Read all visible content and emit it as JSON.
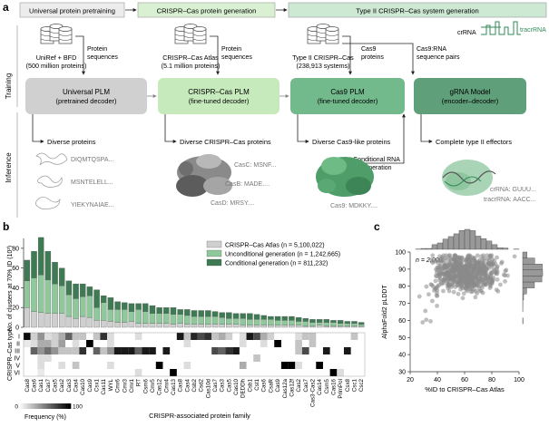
{
  "panel_labels": {
    "a": "a",
    "b": "b",
    "c": "c"
  },
  "stages": [
    {
      "label": "Universal protein pretraining",
      "color": "#e9e9e9"
    },
    {
      "label": "CRISPR–Cas protein generation",
      "color": "#d7f0d0"
    },
    {
      "label": "Type II CRISPR–Cas system generation",
      "color": "#c9e6cf"
    }
  ],
  "row_labels": {
    "training": "Training",
    "inference": "Inference"
  },
  "databases": [
    {
      "name": "UniRef + BFD",
      "detail": "(500 million proteins)",
      "arrow_label": [
        "Protein",
        "sequences"
      ]
    },
    {
      "name": "CRISPR–Cas Atlas",
      "detail": "(5.1 million proteins)",
      "arrow_label": [
        "Protein",
        "sequences"
      ]
    },
    {
      "name": "Type II CRISPR–Cas",
      "detail": "(238,913 systems)",
      "arrow_label": [
        "Cas9",
        "proteins"
      ]
    },
    {
      "name": "",
      "detail": "",
      "arrow_label": [
        "Cas9:RNA",
        "sequence pairs"
      ]
    }
  ],
  "models": [
    {
      "title": "Universal PLM",
      "subtitle": "(pretrained decoder)",
      "color": "#cfcfcf"
    },
    {
      "title": "CRISPR–Cas PLM",
      "subtitle": "(fine-tuned decoder)",
      "color": "#c3e8b8"
    },
    {
      "title": "Cas9 PLM",
      "subtitle": "(fine-tuned decoder)",
      "color": "#6fb889"
    },
    {
      "title": "gRNA Model",
      "subtitle": "(encoder–decoder)",
      "color": "#5e9e78"
    }
  ],
  "rna_labels": {
    "crrna": "crRNA",
    "tracrrna": "tracrRNA"
  },
  "conditional_label": [
    "Conditional RNA",
    "generation"
  ],
  "outputs": [
    {
      "title": "Diverse proteins",
      "items": [
        "DIQMTQSPA...",
        "MSNTELELL...",
        "YIEKYNAIAE..."
      ]
    },
    {
      "title": "Diverse CRISPR–Cas proteins",
      "items": [
        "CasC: MSNF...",
        "CasB: MADE....",
        "CasD: MRSY...."
      ]
    },
    {
      "title": "Diverse Cas9-like proteins",
      "items": [
        "Cas9: MDKKY...."
      ]
    },
    {
      "title": "Complete type II effectors",
      "items": [
        "crRNA: GUUU...",
        "tracrRNA: AACC..."
      ]
    }
  ],
  "chart_data": [
    {
      "type": "bar",
      "panel": "b",
      "stacked": true,
      "ylabel": "No. of clusters at 70% ID (10³)",
      "xlabel": "CRISPR-associated protein family",
      "ylim": [
        0,
        90
      ],
      "yticks": [
        0,
        20,
        40,
        60,
        80
      ],
      "legend_position": "top-right",
      "categories": [
        "Cas8",
        "Cas6",
        "Cas1",
        "Cas7",
        "Cas5",
        "Cas2",
        "Cas3",
        "Cas4",
        "Cas10",
        "Cas9",
        "Csx1",
        "Cas11",
        "WYL",
        "Cmr6",
        "Cmr3",
        "Cmr1",
        "RT",
        "Csm6",
        "Cmr5",
        "Cas12",
        "Cmr4",
        "Cas13",
        "Cas8",
        "Cas4",
        "Csb2",
        "Csd2",
        "Cas10d",
        "Cas7",
        "Cas3",
        "Cas5",
        "Cas10",
        "DEDDh",
        "Csb1",
        "Cst1",
        "Cas6",
        "CsaR",
        "Cas9",
        "Cas12a",
        "Cas12f",
        "Cas2",
        "Cas7",
        "Cas3-Cas2",
        "Cas14",
        "Csm5",
        "Cas16",
        "PrimPol",
        "Csx8",
        "Csc1",
        "Csc2"
      ],
      "series": [
        {
          "name": "CRISPR–Cas Atlas (n = 5,100,022)",
          "color": "#cfcfcf",
          "values": [
            20,
            16,
            15,
            14,
            14,
            14,
            11,
            9,
            11,
            10,
            7,
            7,
            6,
            5,
            5,
            6,
            4,
            4,
            4,
            4,
            4,
            3,
            4,
            3,
            3,
            3,
            3,
            3,
            3,
            3,
            3,
            2,
            2,
            2,
            2,
            2,
            2,
            2,
            2,
            2,
            1,
            1,
            2,
            1,
            1,
            1,
            1,
            1,
            1
          ]
        },
        {
          "name": "Unconditional generation (n = 1,242,665)",
          "color": "#8fc89a",
          "values": [
            27,
            34,
            38,
            34,
            30,
            28,
            22,
            20,
            20,
            22,
            13,
            18,
            12,
            13,
            13,
            10,
            14,
            12,
            10,
            10,
            10,
            10,
            9,
            9,
            8,
            8,
            8,
            8,
            7,
            6,
            6,
            7,
            6,
            6,
            6,
            6,
            5,
            5,
            5,
            4,
            5,
            4,
            3,
            4,
            4,
            3,
            3,
            3,
            2
          ]
        },
        {
          "name": "Conditional generation (n = 811,232)",
          "color": "#3e7a53",
          "values": [
            21,
            27,
            38,
            29,
            22,
            18,
            14,
            15,
            13,
            9,
            18,
            7,
            12,
            8,
            7,
            8,
            6,
            8,
            8,
            6,
            6,
            7,
            5,
            6,
            6,
            6,
            6,
            5,
            5,
            6,
            5,
            5,
            6,
            5,
            4,
            3,
            4,
            4,
            4,
            4,
            3,
            3,
            3,
            3,
            2,
            3,
            2,
            2,
            2
          ]
        }
      ]
    },
    {
      "type": "heatmap",
      "panel": "b",
      "ylabel": "CRISPR–Cas type",
      "rows": [
        "I",
        "II",
        "III",
        "IV",
        "V",
        "VI"
      ],
      "colorbar_label": "Frequency (%)",
      "colorbar_range": [
        0,
        100
      ],
      "values": [
        [
          95,
          15,
          40,
          10,
          15,
          30,
          60,
          20,
          20,
          0,
          20,
          80,
          10,
          0,
          0,
          0,
          10,
          0,
          0,
          0,
          0,
          0,
          90,
          20,
          85,
          70,
          80,
          20,
          30,
          15,
          0,
          10,
          90,
          70,
          30,
          15,
          0,
          0,
          0,
          10,
          20,
          20,
          0,
          0,
          0,
          0,
          0,
          20,
          0
        ],
        [
          5,
          10,
          30,
          30,
          15,
          35,
          0,
          10,
          0,
          100,
          0,
          0,
          10,
          0,
          0,
          0,
          0,
          0,
          0,
          0,
          0,
          0,
          0,
          10,
          0,
          0,
          0,
          0,
          0,
          0,
          0,
          10,
          0,
          0,
          10,
          0,
          100,
          0,
          0,
          20,
          0,
          20,
          0,
          0,
          0,
          0,
          0,
          0,
          0
        ],
        [
          0,
          60,
          40,
          55,
          40,
          20,
          20,
          20,
          80,
          0,
          60,
          20,
          40,
          90,
          90,
          90,
          60,
          90,
          90,
          0,
          90,
          0,
          0,
          0,
          0,
          0,
          0,
          70,
          60,
          80,
          90,
          0,
          0,
          0,
          0,
          0,
          0,
          0,
          0,
          20,
          70,
          0,
          0,
          90,
          0,
          0,
          90,
          0,
          0
        ],
        [
          0,
          0,
          10,
          10,
          0,
          0,
          0,
          0,
          0,
          0,
          0,
          0,
          0,
          0,
          0,
          0,
          0,
          0,
          0,
          0,
          0,
          0,
          0,
          0,
          0,
          0,
          0,
          0,
          0,
          0,
          0,
          0,
          0,
          20,
          0,
          0,
          0,
          0,
          0,
          0,
          0,
          0,
          0,
          0,
          0,
          0,
          0,
          0,
          0
        ],
        [
          0,
          0,
          10,
          0,
          0,
          10,
          0,
          20,
          0,
          0,
          0,
          0,
          10,
          0,
          0,
          0,
          0,
          0,
          0,
          100,
          0,
          0,
          0,
          10,
          0,
          0,
          0,
          0,
          0,
          0,
          0,
          30,
          0,
          0,
          0,
          0,
          0,
          100,
          100,
          10,
          0,
          0,
          100,
          0,
          0,
          0,
          0,
          0,
          0
        ],
        [
          0,
          0,
          5,
          0,
          0,
          0,
          0,
          0,
          0,
          0,
          0,
          0,
          0,
          0,
          0,
          0,
          10,
          0,
          0,
          0,
          0,
          100,
          0,
          0,
          0,
          0,
          0,
          0,
          0,
          0,
          0,
          0,
          0,
          0,
          0,
          0,
          0,
          0,
          0,
          0,
          0,
          0,
          0,
          0,
          100,
          10,
          0,
          0,
          0
        ]
      ]
    },
    {
      "type": "scatter",
      "panel": "c",
      "xlabel": "%ID to CRISPR–Cas Atlas",
      "ylabel": "AlphaFold2 pLDDT",
      "xlim": [
        20,
        100
      ],
      "ylim": [
        30,
        100
      ],
      "xticks": [
        20,
        40,
        60,
        80,
        100
      ],
      "yticks": [
        30,
        40,
        50,
        60,
        70,
        80,
        90,
        100
      ],
      "annotation": "n = 2,000",
      "marginal_histograms": true
    }
  ]
}
